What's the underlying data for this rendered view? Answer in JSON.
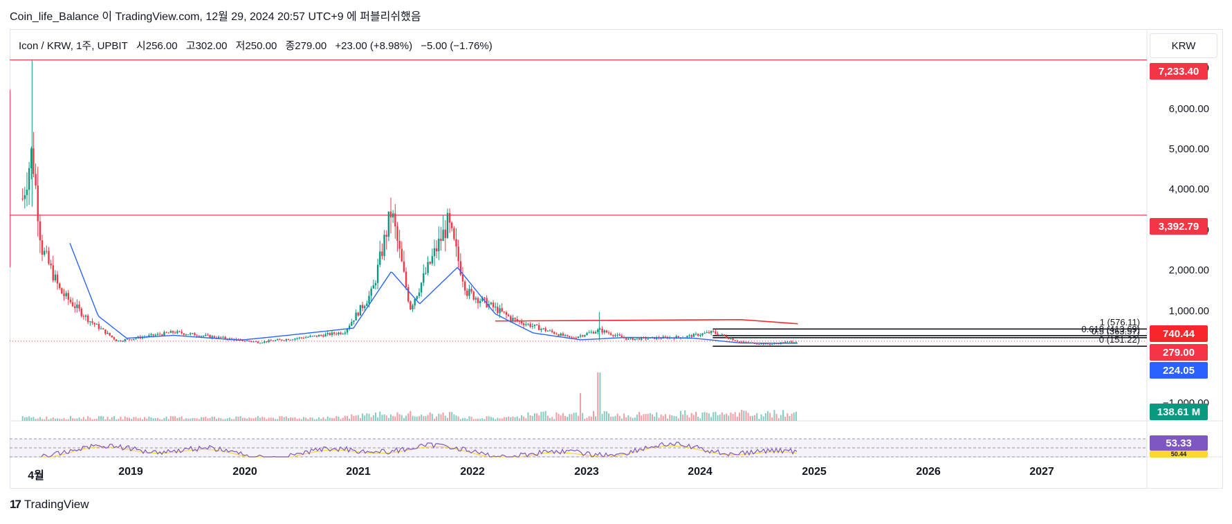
{
  "caption": "Coin_life_Balance 이 TradingView.com, 12월 29, 2024 20:57 UTC+9 에 퍼블리쉬했음",
  "legend": {
    "symbol": "Icon / KRW, 1주, UPBIT",
    "open": "시256.00",
    "high": "고302.00",
    "low": "저250.00",
    "close": "종279.00",
    "change": "+23.00 (+8.98%)",
    "change2": "−5.00 (−1.76%)"
  },
  "currency_button": "KRW",
  "y_axis_labels": [
    "7,000.00",
    "6,000.00",
    "5,000.00",
    "4,000.00",
    "3,000.00",
    "2,000.00",
    "1,000.00",
    "−1,000.00"
  ],
  "price_tags": {
    "level_high": "7,233.40",
    "level_mid": "3,392.79",
    "red_line": "740.44",
    "last_price": "279.00",
    "ma": "224.05",
    "volume": "138.61 M",
    "rsi": "53.33",
    "rsi_ma": "50.44"
  },
  "fib_labels": [
    "1 (576.11)",
    "0.618 (413.69)",
    "0.5 (363.57)",
    "0 (151.22)"
  ],
  "x_axis_labels": [
    "4월",
    "2019",
    "2020",
    "2021",
    "2022",
    "2023",
    "2024",
    "2025",
    "2026",
    "2027"
  ],
  "colors": {
    "up": "#089981",
    "down": "#f23645",
    "ma_line": "#2962ff",
    "hline": "#f23645",
    "rsi": "#7e57c2",
    "rsi_ma": "#fdd835",
    "last_price": "#f23645"
  },
  "logo": "TradingView",
  "chart_data": {
    "type": "candlestick",
    "title": "Icon / KRW, 1주, UPBIT",
    "ylabel": "KRW",
    "ylim": [
      -1000,
      7500
    ],
    "x_range": [
      "2018-01",
      "2027-12"
    ],
    "horizontal_levels": [
      7233.4,
      3392.79,
      740.44
    ],
    "fib_levels": [
      576.11,
      413.69,
      363.57,
      151.22
    ],
    "last_price": 279.0,
    "price_series": {
      "name": "Icon / KRW",
      "x": [
        "2018-02",
        "2018-03",
        "2018-04",
        "2018-06",
        "2018-09",
        "2018-12",
        "2019-06",
        "2019-12",
        "2020-03",
        "2020-09",
        "2020-12",
        "2021-03",
        "2021-05",
        "2021-07",
        "2021-11",
        "2022-01",
        "2022-06",
        "2022-12",
        "2023-03",
        "2023-06",
        "2023-12",
        "2024-03",
        "2024-06",
        "2024-09",
        "2024-12"
      ],
      "values": [
        3800,
        5000,
        2600,
        1500,
        800,
        280,
        500,
        330,
        250,
        400,
        500,
        1500,
        3500,
        1100,
        3200,
        1500,
        800,
        350,
        550,
        330,
        380,
        500,
        250,
        200,
        279
      ]
    },
    "ma_series": {
      "x": [
        "2018-07",
        "2018-10",
        "2019-01",
        "2019-06",
        "2020-01",
        "2020-06",
        "2021-01",
        "2021-05",
        "2021-08",
        "2021-12",
        "2022-04",
        "2022-08",
        "2023-01",
        "2023-06",
        "2024-01",
        "2024-06",
        "2024-12"
      ],
      "values": [
        2700,
        900,
        350,
        420,
        300,
        420,
        600,
        2000,
        1200,
        2100,
        950,
        480,
        310,
        370,
        350,
        230,
        224
      ]
    },
    "volume_last": 138610000,
    "rsi_last": 53.33,
    "rsi_ma_last": 50.44
  }
}
